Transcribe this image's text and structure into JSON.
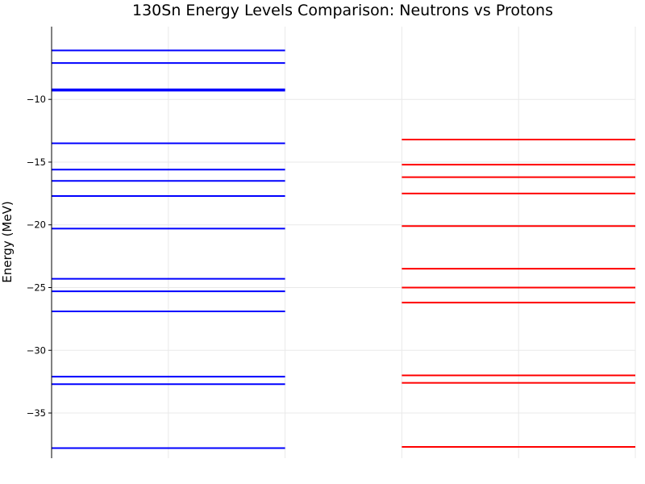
{
  "chart_data": {
    "type": "line",
    "title": "130Sn Energy Levels Comparison: Neutrons vs Protons",
    "xlabel": "",
    "ylabel": "Energy (MeV)",
    "xlim": [
      0,
      5
    ],
    "ylim": [
      -38.6,
      -4.2
    ],
    "yticks": [
      -10,
      -15,
      -20,
      -25,
      -30,
      -35
    ],
    "ytick_labels": [
      "−10",
      "−15",
      "−20",
      "−25",
      "−30",
      "−35"
    ],
    "grid": true,
    "legend": "none",
    "series": [
      {
        "color": "#0000ff",
        "x_range": [
          0,
          2
        ],
        "levels": [
          -6.1,
          -7.1,
          -9.2,
          -9.3,
          -13.5,
          -15.6,
          -16.5,
          -17.7,
          -20.3,
          -24.3,
          -25.3,
          -26.9,
          -32.1,
          -32.7,
          -37.8
        ]
      },
      {
        "color": "#ff0000",
        "x_range": [
          3,
          5
        ],
        "levels": [
          -13.2,
          -15.2,
          -16.2,
          -17.5,
          -20.1,
          -23.5,
          -25.0,
          -26.2,
          -32.0,
          -32.6,
          -37.7
        ]
      }
    ]
  }
}
